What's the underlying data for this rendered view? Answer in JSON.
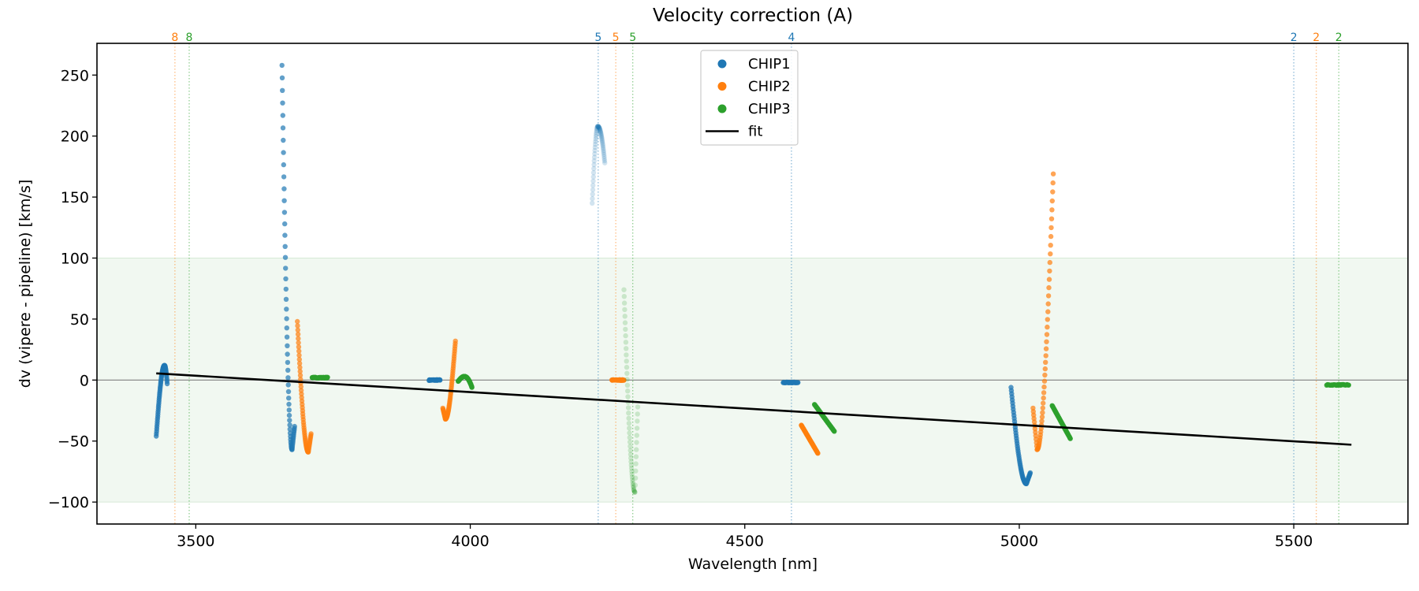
{
  "chart_data": {
    "type": "scatter",
    "title": "Velocity correction (A)",
    "xlabel": "Wavelength [nm]",
    "ylabel": "dv (vipere - pipeline) [km/s]",
    "xlim": [
      3320,
      5708
    ],
    "ylim": [
      -118,
      276
    ],
    "xticks": [
      3500,
      4000,
      4500,
      5000,
      5500
    ],
    "xtick_labels": [
      "3500",
      "4000",
      "4500",
      "5000",
      "5500"
    ],
    "yticks": [
      -100,
      -50,
      0,
      50,
      100,
      150,
      200,
      250
    ],
    "ytick_labels": [
      "−100",
      "−50",
      "0",
      "50",
      "100",
      "150",
      "200",
      "250"
    ],
    "grid": false,
    "accepted_band": [
      -100,
      100
    ],
    "zero_line": 0,
    "legend": {
      "placement": "upper-center",
      "entries": [
        {
          "label": "CHIP1",
          "kind": "marker",
          "color": "#1f77b4"
        },
        {
          "label": "CHIP2",
          "kind": "marker",
          "color": "#ff7f0e"
        },
        {
          "label": "CHIP3",
          "kind": "marker",
          "color": "#2ca02c"
        },
        {
          "label": "fit",
          "kind": "line",
          "color": "#000000"
        }
      ]
    },
    "colors": {
      "CHIP1": "#1f77b4",
      "CHIP2": "#ff7f0e",
      "CHIP3": "#2ca02c",
      "fit": "#000000",
      "band": "#e6f2e6"
    },
    "order_markers": [
      {
        "label": "8",
        "chip": "CHIP2",
        "x": 3462
      },
      {
        "label": "8",
        "chip": "CHIP3",
        "x": 3488
      },
      {
        "label": "5",
        "chip": "CHIP1",
        "x": 4233
      },
      {
        "label": "5",
        "chip": "CHIP2",
        "x": 4265
      },
      {
        "label": "5",
        "chip": "CHIP3",
        "x": 4296
      },
      {
        "label": "4",
        "chip": "CHIP1",
        "x": 4585
      },
      {
        "label": "2",
        "chip": "CHIP1",
        "x": 5500
      },
      {
        "label": "2",
        "chip": "CHIP2",
        "x": 5541
      },
      {
        "label": "2",
        "chip": "CHIP3",
        "x": 5582
      }
    ],
    "fit": {
      "x": [
        3428,
        5605
      ],
      "y": [
        5.5,
        -53
      ]
    },
    "series": [
      {
        "name": "CHIP1",
        "segments": [
          {
            "order": 9,
            "shape": "hook",
            "x0": 3428,
            "x1": 3448,
            "ymin": -46,
            "ypeak": 12,
            "yend": -3,
            "alpha": 0.75
          },
          {
            "order": 7,
            "shape": "drop",
            "x0": 3657,
            "x1": 3680,
            "ystart": 258,
            "ymin": -57,
            "yend": -38,
            "alpha": 0.7
          },
          {
            "order": 6,
            "shape": "flat",
            "x0": 3925,
            "x1": 3945,
            "y": 0,
            "alpha": 0.9
          },
          {
            "order": 5,
            "shape": "arch",
            "x0": 4222,
            "x1": 4245,
            "ystart": 145,
            "ypeak": 208,
            "yend": 178,
            "alpha": 0.2
          },
          {
            "order": 4,
            "shape": "flat",
            "x0": 4570,
            "x1": 4597,
            "y": -2,
            "alpha": 0.8
          },
          {
            "order": 3,
            "shape": "drop",
            "x0": 4985,
            "x1": 5020,
            "ystart": -6,
            "ymin": -85,
            "yend": -76,
            "alpha": 0.75
          }
        ]
      },
      {
        "name": "CHIP2",
        "segments": [
          {
            "order": 7,
            "shape": "rise",
            "x0": 3685,
            "x1": 3710,
            "ystart": 48,
            "ymin": -59,
            "yend": -44,
            "alpha": 0.7
          },
          {
            "order": 6,
            "shape": "rise",
            "x0": 3950,
            "x1": 3973,
            "ystart": -23,
            "ymin": -32,
            "yend": 32,
            "alpha": 0.7,
            "reverse": true
          },
          {
            "order": 5,
            "shape": "flat",
            "x0": 4258,
            "x1": 4280,
            "y": 0,
            "alpha": 0.9
          },
          {
            "order": 4,
            "shape": "line",
            "x0": 4603,
            "x1": 4633,
            "ystart": -37,
            "yend": -60,
            "alpha": 0.95
          },
          {
            "order": 3,
            "shape": "rise",
            "x0": 5025,
            "x1": 5062,
            "ystart": -23,
            "ymin": -57,
            "yend": 169,
            "alpha": 0.7,
            "reverse": true
          }
        ]
      },
      {
        "name": "CHIP3",
        "segments": [
          {
            "order": 7,
            "shape": "flat",
            "x0": 3712,
            "x1": 3740,
            "y": 2,
            "alpha": 0.95
          },
          {
            "order": 6,
            "shape": "arch",
            "x0": 3978,
            "x1": 4003,
            "ystart": -1,
            "ypeak": 3,
            "yend": -6,
            "alpha": 0.95
          },
          {
            "order": 5,
            "shape": "drop",
            "x0": 4280,
            "x1": 4305,
            "ystart": 74,
            "ymin": -92,
            "yend": -22,
            "alpha": 0.2
          },
          {
            "order": 4,
            "shape": "line",
            "x0": 4627,
            "x1": 4663,
            "ystart": -20,
            "yend": -42,
            "alpha": 0.95
          },
          {
            "order": 3,
            "shape": "line",
            "x0": 5060,
            "x1": 5093,
            "ystart": -21,
            "yend": -48,
            "alpha": 0.95
          },
          {
            "order": 2,
            "shape": "flat",
            "x0": 5560,
            "x1": 5600,
            "y": -4,
            "alpha": 0.9
          }
        ]
      }
    ]
  }
}
